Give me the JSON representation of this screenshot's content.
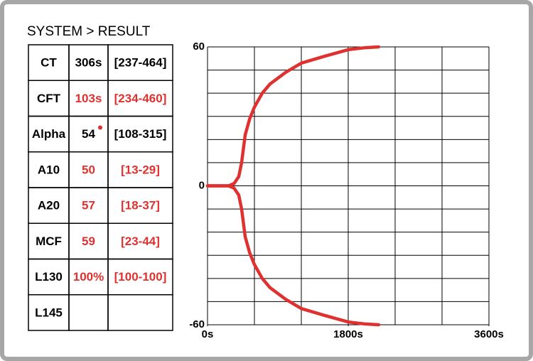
{
  "header": {
    "title": "SYSTEM > RESULT"
  },
  "table": {
    "rows": [
      {
        "cells": [
          "CT",
          "306s",
          "[237-464]"
        ],
        "highlight": false
      },
      {
        "cells": [
          "CFT",
          "103s",
          "[234-460]"
        ],
        "highlight": true
      },
      {
        "cells": [
          "Alpha",
          "54",
          "[108-315]"
        ],
        "highlight": false
      },
      {
        "cells": [
          "A10",
          "50",
          "[13-29]"
        ],
        "highlight": true
      },
      {
        "cells": [
          "A20",
          "57",
          "[18-37]"
        ],
        "highlight": true
      },
      {
        "cells": [
          "MCF",
          "59",
          "[23-44]"
        ],
        "highlight": true
      },
      {
        "cells": [
          "L130",
          "100%",
          "[100-100]"
        ],
        "highlight": true
      },
      {
        "cells": [
          "L145",
          "",
          ""
        ],
        "highlight": false
      }
    ],
    "highlight_color": "#e03131"
  },
  "chart_data": {
    "type": "line",
    "x": [
      0,
      270,
      340,
      400,
      436,
      482,
      540,
      600,
      700,
      800,
      1000,
      1200,
      1500,
      1800,
      2000,
      2190
    ],
    "series": [
      {
        "name": "upper",
        "color": "#e03131",
        "values": [
          0,
          0,
          1,
          4,
          10,
          22,
          29,
          34,
          40,
          44,
          49,
          53,
          56,
          58.8,
          59.6,
          60
        ]
      },
      {
        "name": "lower",
        "color": "#e03131",
        "values": [
          0,
          0,
          -1,
          -4,
          -10,
          -22,
          -29,
          -34,
          -40,
          -44,
          -49,
          -53,
          -56,
          -58.8,
          -59.6,
          -60
        ]
      }
    ],
    "xlim": [
      0,
      3600
    ],
    "xticks": [
      {
        "value": 0,
        "label": "0s"
      },
      {
        "value": 1800,
        "label": "1800s"
      },
      {
        "value": 3600,
        "label": "3600s"
      }
    ],
    "ylim": [
      -60,
      60
    ],
    "yticks": [
      -60,
      0,
      60
    ],
    "xgrid": [
      0,
      600,
      1200,
      1800,
      2400,
      3000,
      3600
    ],
    "ygrid": [
      -60,
      -50,
      -40,
      -30,
      -20,
      -10,
      0,
      10,
      20,
      30,
      40,
      50,
      60
    ]
  }
}
